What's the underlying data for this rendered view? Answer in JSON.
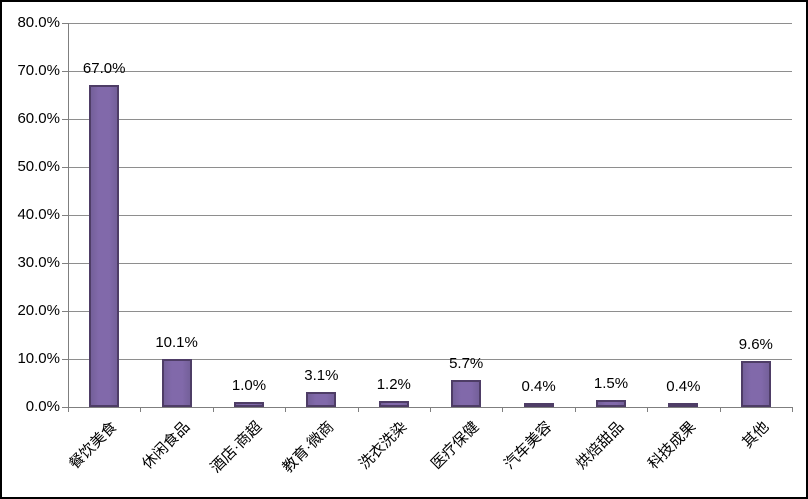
{
  "chart_data": {
    "type": "bar",
    "title": "",
    "xlabel": "",
    "ylabel": "",
    "categories": [
      "餐饮美食",
      "休闲食品",
      "酒店·商超",
      "教育·微商",
      "洗衣洗染",
      "医疗保健",
      "汽车美容",
      "烘焙甜品",
      "科技成果",
      "其他"
    ],
    "values": [
      67.0,
      10.1,
      1.0,
      3.1,
      1.2,
      5.7,
      0.4,
      1.5,
      0.4,
      9.6
    ],
    "data_labels": [
      "67.0%",
      "10.1%",
      "1.0%",
      "3.1%",
      "1.2%",
      "5.7%",
      "0.4%",
      "1.5%",
      "0.4%",
      "9.6%"
    ],
    "y_tick_labels": [
      "80.0%",
      "70.0%",
      "60.0%",
      "50.0%",
      "40.0%",
      "30.0%",
      "20.0%",
      "10.0%",
      "0.0%"
    ],
    "ylim": [
      0,
      80
    ],
    "y_step": 10,
    "grid": true,
    "legend": "none",
    "colors": {
      "bar_fill": "#7c64a5",
      "bar_border": "#4e3d66",
      "gridline": "#8e8e8e",
      "axis": "#7f7f7f",
      "label_text": "#000000",
      "background": "#ffffff",
      "frame_border": "#000000"
    }
  }
}
